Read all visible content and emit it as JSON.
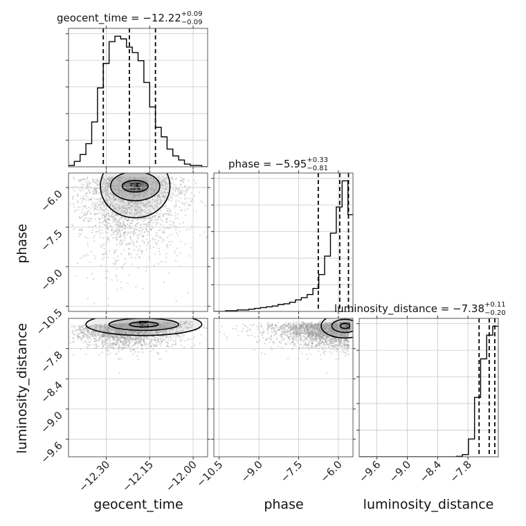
{
  "chart_data": {
    "type": "corner",
    "parameters": [
      "geocent_time",
      "phase",
      "luminosity_distance"
    ],
    "axis_labels": {
      "geocent_time": "geocent_time",
      "phase": "phase",
      "luminosity_distance": "luminosity_distance"
    },
    "titles": [
      {
        "param": "geocent_time",
        "prefix": "geocent_time = −12.22",
        "sup": "+0.09",
        "sub": "−0.09",
        "median": -12.22,
        "q_low": -12.31,
        "q_high": -12.13
      },
      {
        "param": "phase",
        "prefix": "phase = −5.95",
        "sup": "+0.33",
        "sub": "−0.81",
        "median": -5.95,
        "q_low": -6.76,
        "q_high": -5.62
      },
      {
        "param": "luminosity_distance",
        "prefix": "luminosity_distance = −7.38",
        "sup": "+0.11",
        "sub": "−0.20",
        "median": -7.38,
        "q_low": -7.58,
        "q_high": -7.27
      }
    ],
    "ranges": {
      "geocent_time": [
        -12.43,
        -11.95
      ],
      "phase": [
        -10.7,
        -5.45
      ],
      "luminosity_distance": [
        -9.95,
        -7.2
      ]
    },
    "ticks": {
      "geocent_time": {
        "values": [
          -12.3,
          -12.15,
          -12.0
        ],
        "labels": [
          "−12.30",
          "−12.15",
          "−12.00"
        ]
      },
      "phase": {
        "values": [
          -10.5,
          -9.0,
          -7.5,
          -6.0
        ],
        "labels": [
          "−10.5",
          "−9.0",
          "−7.5",
          "−6.0"
        ]
      },
      "luminosity_distance": {
        "values": [
          -9.6,
          -9.0,
          -8.4,
          -7.8
        ],
        "labels": [
          "−9.6",
          "−9.0",
          "−8.4",
          "−7.8"
        ]
      }
    },
    "histograms": {
      "geocent_time": {
        "bins": [
          -12.43,
          -12.41,
          -12.39,
          -12.37,
          -12.35,
          -12.33,
          -12.31,
          -12.29,
          -12.27,
          -12.25,
          -12.23,
          -12.21,
          -12.19,
          -12.17,
          -12.15,
          -12.13,
          -12.11,
          -12.09,
          -12.07,
          -12.05,
          -12.03,
          -12.01,
          -11.99,
          -11.97,
          -11.95
        ],
        "counts": [
          1,
          4,
          9,
          17,
          33,
          58,
          76,
          92,
          96,
          94,
          88,
          84,
          78,
          62,
          44,
          29,
          22,
          13,
          8,
          5,
          2,
          1,
          1,
          0
        ]
      },
      "phase": {
        "bins": [
          -10.7,
          -10.48,
          -10.26,
          -10.04,
          -9.82,
          -9.6,
          -9.38,
          -9.16,
          -8.94,
          -8.72,
          -8.5,
          -8.28,
          -8.06,
          -7.84,
          -7.62,
          -7.4,
          -7.18,
          -6.96,
          -6.74,
          -6.52,
          -6.3,
          -6.08,
          -5.86,
          -5.64,
          -5.45
        ],
        "counts": [
          0,
          0,
          0.5,
          0.5,
          1,
          1,
          1.5,
          2,
          2.5,
          3,
          3.5,
          4.5,
          5,
          6,
          7.5,
          9,
          11,
          15,
          24,
          36,
          51,
          68,
          85,
          63
        ]
      },
      "luminosity_distance": {
        "bins": [
          -9.95,
          -9.83,
          -9.71,
          -9.59,
          -9.47,
          -9.35,
          -9.23,
          -9.11,
          -8.99,
          -8.87,
          -8.75,
          -8.63,
          -8.51,
          -8.39,
          -8.27,
          -8.15,
          -8.03,
          -7.91,
          -7.79,
          -7.67,
          -7.55,
          -7.43,
          -7.31,
          -7.2
        ],
        "counts": [
          0,
          0,
          0,
          0,
          0,
          0,
          0,
          0,
          0,
          0,
          0,
          0,
          0,
          0,
          0,
          0,
          0.3,
          1.5,
          12,
          40,
          66,
          82,
          88
        ]
      }
    },
    "grid": true
  }
}
